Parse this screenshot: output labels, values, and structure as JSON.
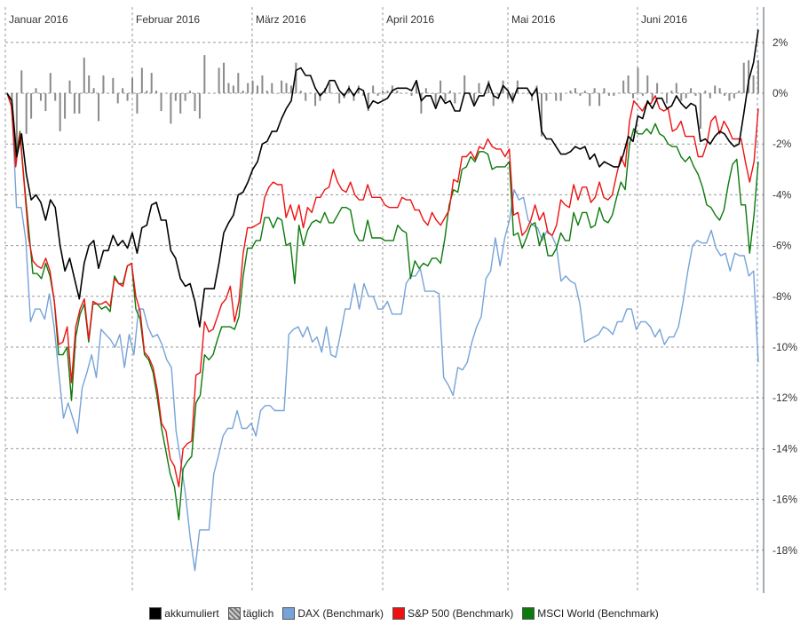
{
  "chart_data": {
    "type": "line",
    "months": [
      "Januar 2016",
      "Februar 2016",
      "März 2016",
      "April 2016",
      "Mai 2016",
      "Juni 2016"
    ],
    "y_ticks": [
      "2%",
      "0%",
      "-2%",
      "-4%",
      "-6%",
      "-8%",
      "-10%",
      "-12%",
      "-14%",
      "-16%",
      "-18%"
    ],
    "ylim": [
      -19.5,
      3.3
    ],
    "grid": true,
    "legend_position": "bottom",
    "series": [
      {
        "name": "akkumuliert",
        "color": "#000000",
        "values": [
          0,
          -0.3,
          -2.5,
          -1.6,
          -3.2,
          -4.2,
          -4.0,
          -4.3,
          -5.0,
          -4.2,
          -4.5,
          -6.0,
          -7.0,
          -6.5,
          -7.3,
          -8.1,
          -6.7,
          -6.0,
          -5.8,
          -6.9,
          -6.2,
          -6.2,
          -5.6,
          -6.0,
          -5.8,
          -6.1,
          -5.5,
          -6.3,
          -5.3,
          -5.2,
          -4.4,
          -4.3,
          -5.0,
          -5.0,
          -6.2,
          -6.5,
          -7.3,
          -7.6,
          -7.5,
          -8.2,
          -9.2,
          -7.7,
          -7.7,
          -7.7,
          -6.7,
          -5.5,
          -5.1,
          -4.8,
          -4.0,
          -3.9,
          -3.5,
          -3.0,
          -2.7,
          -2.0,
          -1.9,
          -1.5,
          -1.5,
          -1.0,
          -0.6,
          -0.3,
          0.9,
          1.0,
          0.7,
          0.7,
          0.2,
          -0.1,
          0.1,
          0.5,
          0.5,
          0.1,
          -0.1,
          0.2,
          -0.1,
          0.2,
          0.1,
          -0.6,
          -0.3,
          -0.4,
          -0.3,
          -0.2,
          0.1,
          0.2,
          0.2,
          0.2,
          0.1,
          0.5,
          -0.3,
          -0.1,
          -0.1,
          -0.6,
          -0.1,
          -0.4,
          -0.3,
          -0.7,
          -0.7,
          0.0,
          0.0,
          -0.5,
          -0.1,
          -0.1,
          0.4,
          -0.1,
          -0.2,
          0.3,
          0.1,
          -0.3,
          0.2,
          0.2,
          0.2,
          -0.1,
          0.2,
          -1.5,
          -1.8,
          -1.8,
          -2.1,
          -2.4,
          -2.4,
          -2.3,
          -2.1,
          -2.2,
          -2.1,
          -2.6,
          -2.4,
          -2.9,
          -2.7,
          -2.8,
          -2.9,
          -2.9,
          -2.4,
          -1.7,
          -1.9,
          -0.9,
          -1.0,
          -0.3,
          -0.6,
          -0.2,
          -0.2,
          -0.6,
          -0.5,
          -0.1,
          -0.4,
          -0.6,
          -0.4,
          -0.5,
          -1.9,
          -1.8,
          -2.0,
          -1.7,
          -1.5,
          -1.6,
          -1.9,
          -2.1,
          -2.0,
          -0.8,
          0.5,
          1.2,
          2.5
        ]
      },
      {
        "name": "täglich",
        "color": "#8a8a8a",
        "values": [
          0,
          -0.3,
          -2.2,
          0.9,
          -1.6,
          -1.0,
          0.2,
          -0.3,
          -0.7,
          0.8,
          -0.3,
          -1.5,
          -1.0,
          0.5,
          -0.8,
          -0.8,
          1.4,
          0.7,
          0.2,
          -1.1,
          0.7,
          0.0,
          0.6,
          -0.4,
          0.2,
          -0.3,
          0.6,
          -0.8,
          1.0,
          0.1,
          0.8,
          0.1,
          -0.7,
          0.0,
          -1.2,
          -0.3,
          -0.8,
          -0.3,
          0.1,
          -0.7,
          -1.0,
          1.5,
          0.0,
          0.0,
          1.0,
          1.2,
          0.4,
          0.3,
          0.8,
          0.1,
          0.4,
          0.5,
          0.3,
          0.7,
          0.1,
          0.4,
          0.0,
          0.5,
          0.4,
          0.3,
          1.2,
          0.1,
          -0.3,
          0.0,
          -0.5,
          -0.3,
          0.2,
          0.4,
          0.0,
          -0.4,
          -0.2,
          0.3,
          -0.3,
          0.3,
          -0.1,
          -0.7,
          0.3,
          -0.1,
          0.1,
          0.1,
          0.3,
          0.1,
          0.0,
          0.0,
          -0.1,
          0.4,
          -0.8,
          0.2,
          0.0,
          -0.5,
          0.5,
          -0.3,
          0.1,
          -0.4,
          0.0,
          0.7,
          0.0,
          -0.5,
          0.4,
          0.0,
          0.5,
          -0.5,
          -0.1,
          0.5,
          -0.2,
          -0.4,
          0.5,
          0.0,
          0.0,
          -0.3,
          0.3,
          -1.7,
          -0.3,
          0.0,
          -0.3,
          -0.3,
          0.0,
          0.1,
          0.2,
          -0.1,
          0.1,
          -0.5,
          0.2,
          -0.5,
          0.2,
          -0.1,
          -0.1,
          0.0,
          0.5,
          0.7,
          -0.2,
          1.0,
          -0.1,
          0.7,
          -0.3,
          0.4,
          0.0,
          -0.4,
          0.1,
          0.4,
          -0.3,
          -0.2,
          0.2,
          -0.1,
          -1.4,
          0.1,
          -0.2,
          0.3,
          0.2,
          -0.1,
          -0.3,
          -0.2,
          0.1,
          1.2,
          1.3,
          0.7,
          1.3
        ]
      },
      {
        "name": "DAX (Benchmark)",
        "color": "#76a3d8",
        "values": [
          0,
          -0.5,
          -4.5,
          -4.5,
          -5.8,
          -9.0,
          -8.5,
          -8.5,
          -8.9,
          -7.9,
          -9.2,
          -11.0,
          -12.8,
          -12.2,
          -12.8,
          -13.4,
          -11.6,
          -11.0,
          -10.3,
          -11.2,
          -9.3,
          -9.5,
          -9.7,
          -10.0,
          -9.5,
          -10.8,
          -9.5,
          -10.3,
          -8.5,
          -8.5,
          -9.2,
          -9.6,
          -9.5,
          -9.9,
          -10.5,
          -10.8,
          -13.3,
          -14.5,
          -15.8,
          -17.5,
          -18.8,
          -17.2,
          -17.2,
          -17.2,
          -15.0,
          -14.3,
          -13.5,
          -13.2,
          -13.2,
          -12.5,
          -13.2,
          -13.2,
          -13.0,
          -13.5,
          -12.5,
          -12.3,
          -12.3,
          -12.5,
          -12.5,
          -12.5,
          -9.5,
          -9.3,
          -9.2,
          -9.6,
          -9.2,
          -9.8,
          -9.6,
          -10.2,
          -9.2,
          -10.3,
          -10.4,
          -9.5,
          -8.5,
          -8.5,
          -7.5,
          -8.5,
          -7.5,
          -8.0,
          -8.0,
          -8.5,
          -8.5,
          -8.2,
          -8.7,
          -8.7,
          -8.7,
          -7.5,
          -7.2,
          -7.2,
          -6.9,
          -7.8,
          -7.8,
          -7.8,
          -7.9,
          -11.2,
          -11.5,
          -11.9,
          -10.8,
          -10.9,
          -10.6,
          -9.8,
          -9.2,
          -8.8,
          -7.3,
          -7.0,
          -5.7,
          -6.8,
          -5.7,
          -5.0,
          -3.8,
          -4.2,
          -4.1,
          -5.0,
          -5.2,
          -5.3,
          -5.8,
          -5.4,
          -5.6,
          -6.0,
          -7.4,
          -7.2,
          -7.4,
          -7.5,
          -8.3,
          -9.8,
          -9.7,
          -9.6,
          -9.5,
          -9.2,
          -9.3,
          -9.5,
          -9.0,
          -9.0,
          -8.5,
          -8.5,
          -9.3,
          -9.0,
          -9.0,
          -9.2,
          -9.6,
          -9.3,
          -9.9,
          -9.6,
          -9.6,
          -9.2,
          -8.2,
          -7.0,
          -6.0,
          -5.8,
          -5.9,
          -5.9,
          -5.4,
          -6.1,
          -6.4,
          -6.3,
          -7.0,
          -6.3,
          -6.4,
          -6.4,
          -7.2,
          -7.0,
          -10.6
        ]
      },
      {
        "name": "S&P 500 (Benchmark)",
        "color": "#ee1111",
        "values": [
          0,
          -0.5,
          -2.9,
          -1.6,
          -3.6,
          -5.7,
          -6.6,
          -6.8,
          -6.9,
          -6.5,
          -7.0,
          -8.2,
          -9.9,
          -9.8,
          -9.2,
          -11.4,
          -9.2,
          -8.5,
          -8.1,
          -9.7,
          -8.2,
          -8.3,
          -8.3,
          -8.2,
          -8.4,
          -7.3,
          -7.5,
          -7.6,
          -6.8,
          -6.7,
          -8.0,
          -8.6,
          -10.2,
          -10.4,
          -10.8,
          -11.7,
          -13.0,
          -13.3,
          -14.4,
          -14.7,
          -15.5,
          -14.0,
          -13.8,
          -13.7,
          -11.1,
          -11.0,
          -9.0,
          -9.4,
          -9.3,
          -8.8,
          -8.3,
          -8.1,
          -7.6,
          -9.0,
          -8.2,
          -6.3,
          -5.3,
          -5.3,
          -5.2,
          -5.1,
          -4.1,
          -3.7,
          -3.5,
          -3.6,
          -3.6,
          -4.9,
          -4.4,
          -5.0,
          -4.4,
          -5.3,
          -4.5,
          -4.7,
          -4.1,
          -4.1,
          -3.8,
          -3.7,
          -3.0,
          -3.5,
          -3.8,
          -3.9,
          -3.5,
          -4.0,
          -4.2,
          -4.2,
          -3.6,
          -4.1,
          -4.1,
          -4.1,
          -4.4,
          -4.5,
          -4.5,
          -4.5,
          -4.1,
          -4.2,
          -4.2,
          -4.6,
          -4.6,
          -5.0,
          -5.2,
          -4.7,
          -5.0,
          -5.2,
          -4.9,
          -4.6,
          -3.4,
          -3.5,
          -2.5,
          -2.5,
          -2.3,
          -2.6,
          -2.1,
          -2.2,
          -1.8,
          -2.1,
          -2.2,
          -2.2,
          -2.5,
          -2.2,
          -4.8,
          -4.7,
          -5.6,
          -5.4,
          -5.0,
          -4.4,
          -5.0,
          -4.7,
          -5.5,
          -5.6,
          -5.2,
          -4.2,
          -4.4,
          -4.5,
          -3.6,
          -4.2,
          -3.7,
          -3.7,
          -4.3,
          -4.1,
          -3.5,
          -4.1,
          -4.2,
          -4.0,
          -3.2,
          -2.5,
          -2.9,
          -1.1,
          -0.3,
          -0.5,
          -0.7,
          -0.4,
          -0.4,
          -0.1,
          -0.6,
          -0.7,
          -0.6,
          -1.5,
          -1.4,
          -1.1,
          -1.7,
          -1.7,
          -1.7,
          -2.5,
          -2.5,
          -2.0,
          -1.1,
          -0.9,
          -1.6,
          -1.1,
          -1.4,
          -1.8,
          -1.8,
          -1.8,
          -2.7,
          -3.5,
          -2.7,
          -0.6
        ]
      },
      {
        "name": "MSCI World (Benchmark)",
        "color": "#0b7a0b",
        "values": [
          0,
          -0.5,
          -2.6,
          -1.5,
          -3.5,
          -5.3,
          -7.1,
          -7.1,
          -7.3,
          -6.7,
          -7.2,
          -8.2,
          -10.3,
          -10.3,
          -10.0,
          -12.1,
          -9.6,
          -8.7,
          -8.3,
          -9.8,
          -8.3,
          -8.3,
          -8.5,
          -8.4,
          -8.6,
          -7.2,
          -7.5,
          -7.5,
          -6.8,
          -6.7,
          -8.5,
          -8.9,
          -10.3,
          -10.5,
          -11.0,
          -12.0,
          -13.2,
          -14.1,
          -15.0,
          -15.5,
          -16.8,
          -14.8,
          -14.5,
          -14.3,
          -12.2,
          -11.9,
          -10.3,
          -10.5,
          -10.3,
          -9.7,
          -9.2,
          -9.2,
          -9.2,
          -9.3,
          -8.8,
          -7.2,
          -6.1,
          -6.1,
          -5.8,
          -5.8,
          -4.9,
          -4.9,
          -5.3,
          -4.9,
          -5.0,
          -6.0,
          -5.9,
          -7.5,
          -5.2,
          -6.0,
          -5.4,
          -5.1,
          -5.0,
          -5.1,
          -4.7,
          -5.1,
          -5.1,
          -4.8,
          -4.5,
          -4.5,
          -4.6,
          -5.5,
          -5.8,
          -5.8,
          -5.0,
          -5.7,
          -5.7,
          -5.7,
          -5.8,
          -5.8,
          -5.8,
          -5.2,
          -5.4,
          -5.5,
          -7.3,
          -6.6,
          -6.9,
          -6.7,
          -6.8,
          -6.5,
          -6.5,
          -6.7,
          -5.7,
          -4.4,
          -3.8,
          -3.9,
          -3.0,
          -2.9,
          -2.5,
          -2.7,
          -2.3,
          -2.3,
          -2.4,
          -3.0,
          -2.9,
          -2.9,
          -2.9,
          -2.7,
          -5.6,
          -5.5,
          -6.1,
          -5.7,
          -5.2,
          -5.1,
          -6.0,
          -5.5,
          -6.4,
          -6.4,
          -6.1,
          -5.5,
          -5.8,
          -5.8,
          -4.7,
          -5.2,
          -4.7,
          -4.7,
          -5.3,
          -5.2,
          -4.5,
          -5.0,
          -5.1,
          -4.8,
          -4.1,
          -3.5,
          -3.8,
          -2.0,
          -1.4,
          -1.6,
          -1.6,
          -1.4,
          -1.6,
          -1.2,
          -1.6,
          -1.7,
          -2.0,
          -2.1,
          -2.1,
          -2.5,
          -2.7,
          -2.5,
          -2.9,
          -3.2,
          -3.7,
          -4.4,
          -4.5,
          -4.8,
          -5.0,
          -4.6,
          -3.6,
          -2.8,
          -2.6,
          -4.4,
          -4.4,
          -6.3,
          -4.8,
          -2.7
        ]
      }
    ]
  },
  "legend": {
    "items": [
      {
        "label": "akkumuliert",
        "color": "#000000"
      },
      {
        "label": "täglich",
        "color": "#8a8a8a"
      },
      {
        "label": "DAX (Benchmark)",
        "color": "#76a3d8"
      },
      {
        "label": "S&P 500 (Benchmark)",
        "color": "#ee1111"
      },
      {
        "label": "MSCI World (Benchmark)",
        "color": "#0b7a0b"
      }
    ]
  }
}
